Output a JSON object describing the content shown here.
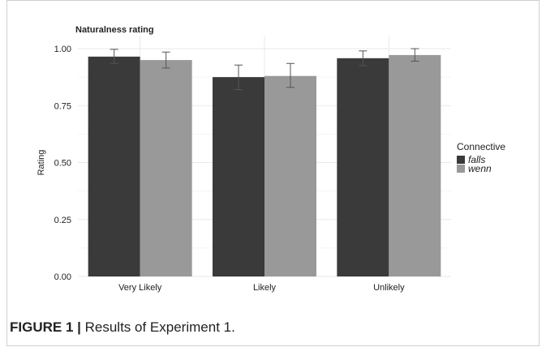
{
  "caption": {
    "label": "FIGURE 1 |",
    "text": "Results of Experiment 1."
  },
  "colors": {
    "falls": "#3a3a3a",
    "wenn": "#999999",
    "grid_major": "#e9e9e9",
    "grid_minor": "#f4f4f4",
    "error_bar": "#555555",
    "text": "#222222"
  },
  "chart_data": {
    "type": "bar",
    "title": "Naturalness rating",
    "xlabel": "",
    "ylabel": "Rating",
    "ylim": [
      0,
      1
    ],
    "yticks": [
      0.0,
      0.25,
      0.5,
      0.75,
      1.0
    ],
    "ytick_labels": [
      "0.00",
      "0.25",
      "0.50",
      "0.75",
      "1.00"
    ],
    "grid": true,
    "legend": {
      "title": "Connective",
      "placement": "right"
    },
    "categories": [
      "Very Likely",
      "Likely",
      "Unlikely"
    ],
    "series": [
      {
        "name": "falls",
        "values": [
          0.965,
          0.875,
          0.958
        ],
        "error_low": [
          0.935,
          0.82,
          0.925
        ],
        "error_high": [
          0.997,
          0.928,
          0.99
        ]
      },
      {
        "name": "wenn",
        "values": [
          0.95,
          0.88,
          0.972
        ],
        "error_low": [
          0.915,
          0.83,
          0.945
        ],
        "error_high": [
          0.985,
          0.935,
          1.0
        ]
      }
    ]
  }
}
